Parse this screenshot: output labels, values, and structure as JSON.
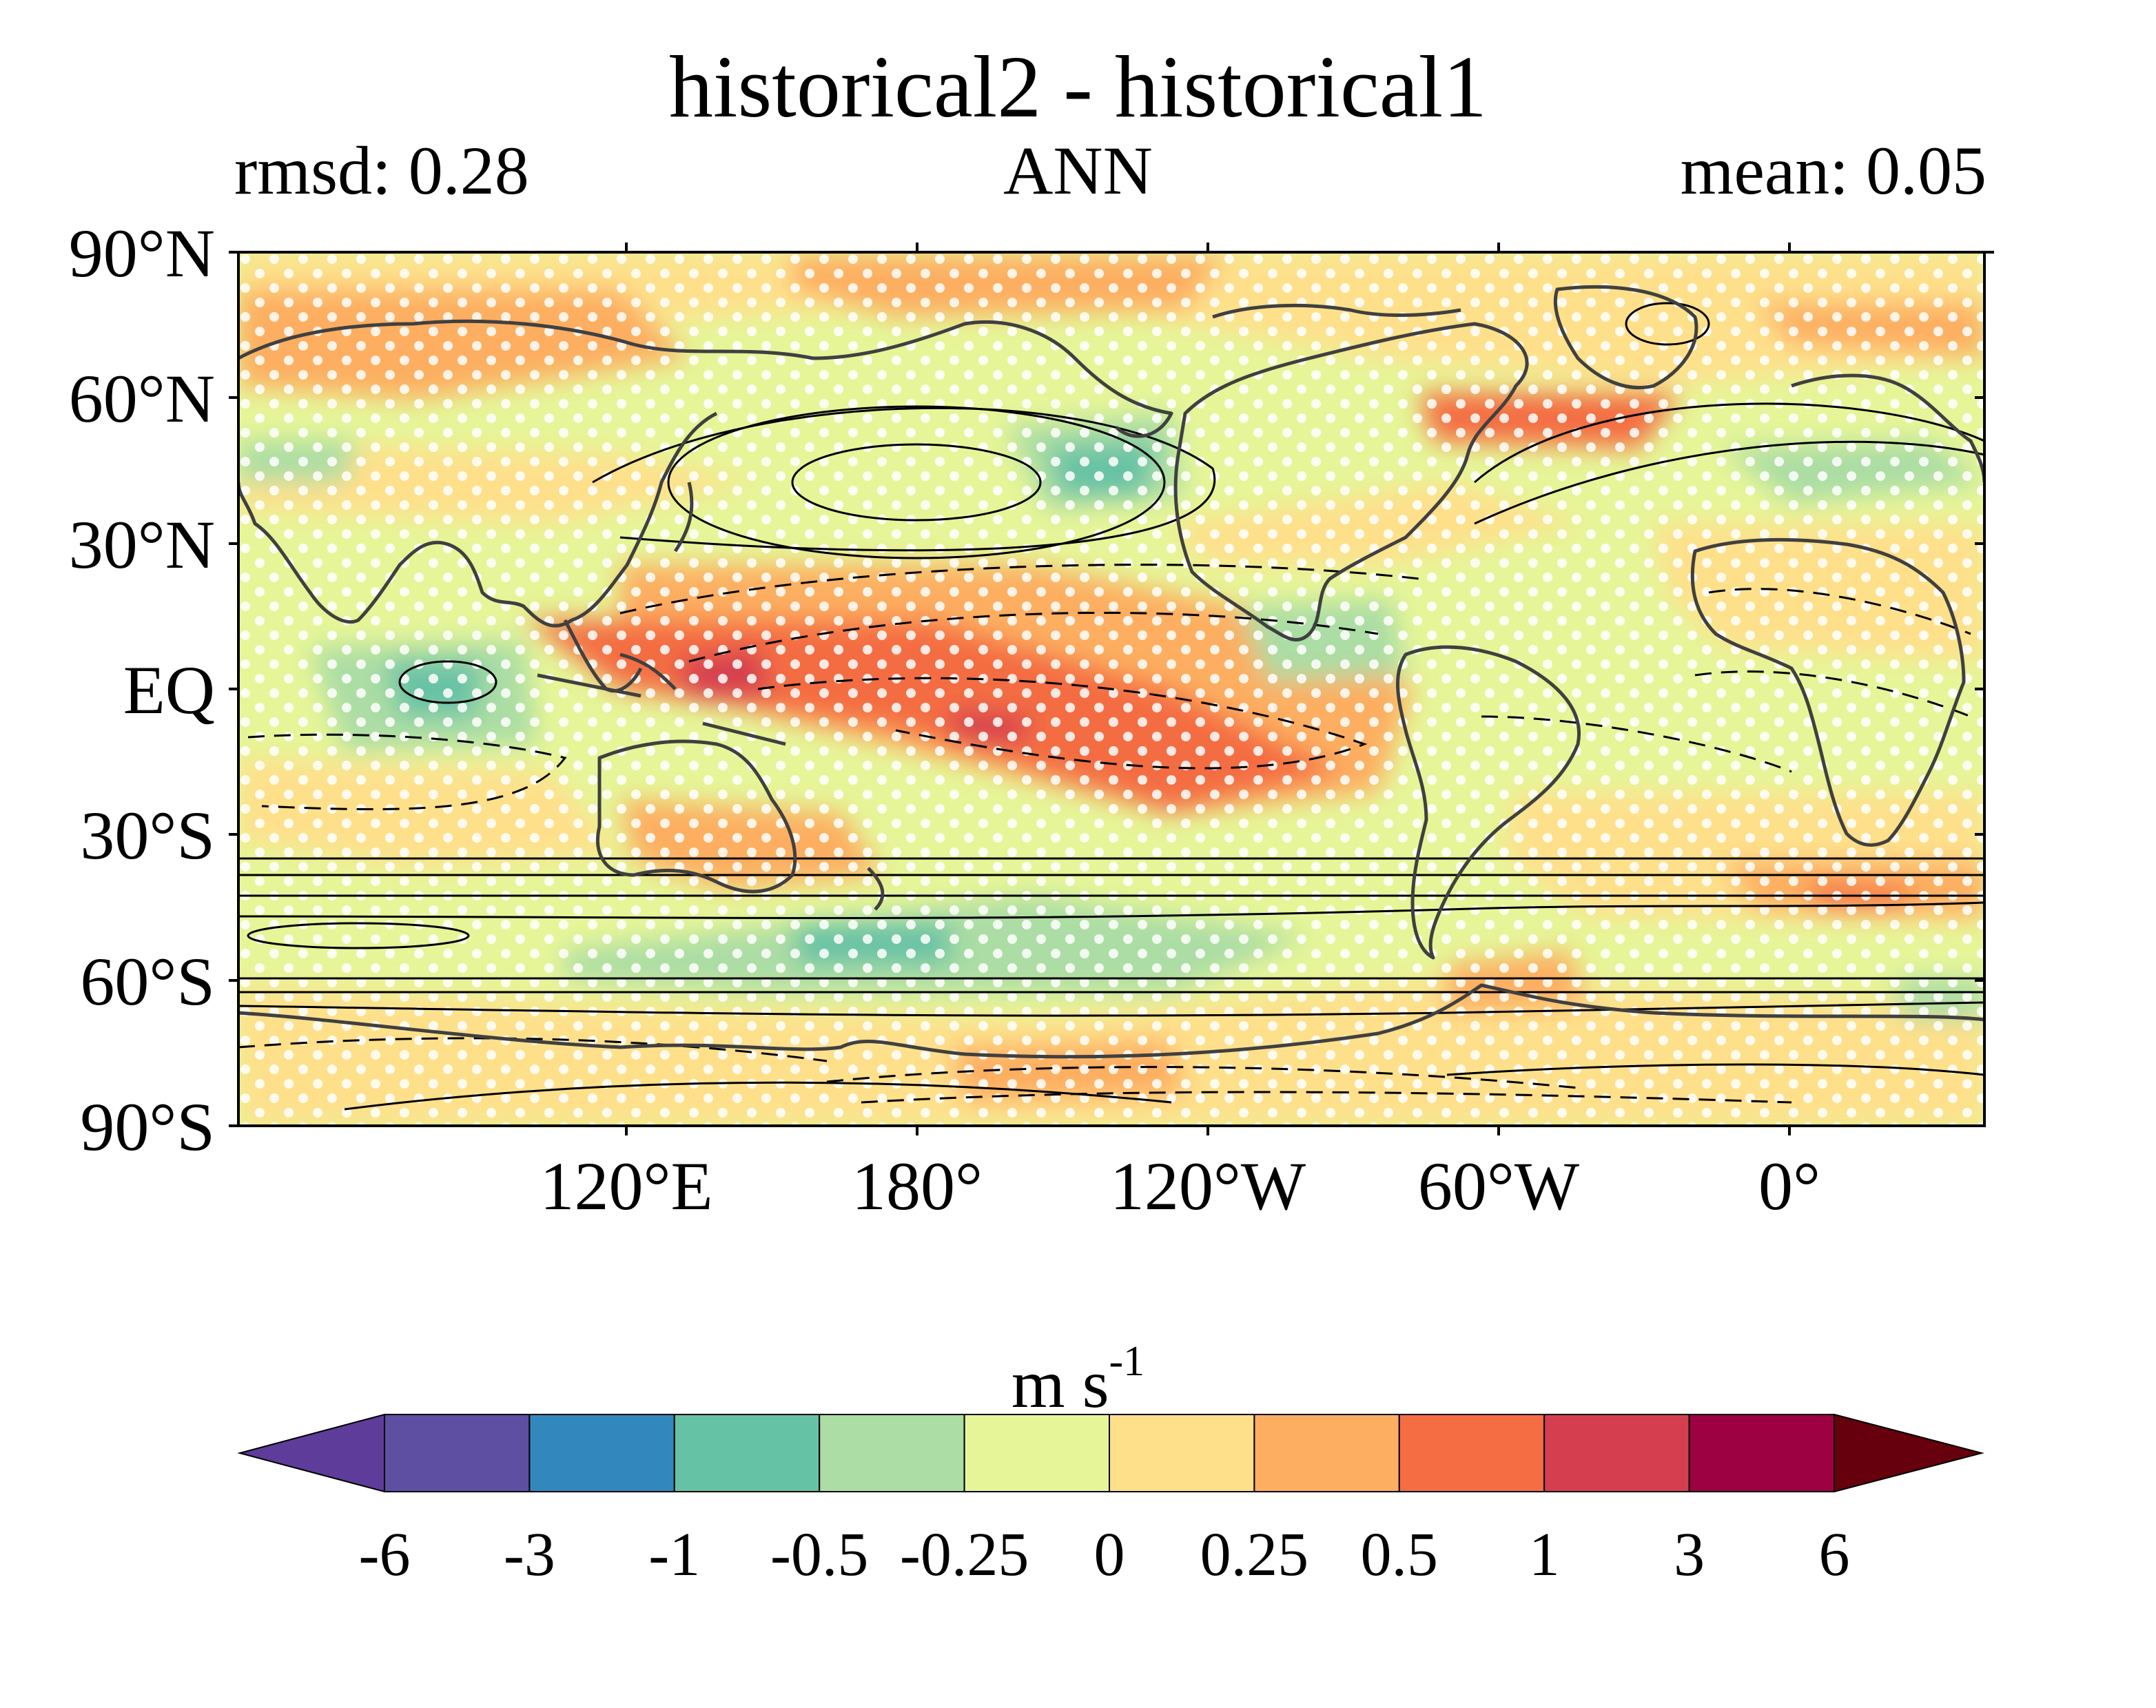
{
  "title": "historical2 - historical1",
  "subtitle_left": "rmsd: 0.28",
  "subtitle_center": "ANN",
  "subtitle_right": "mean: 0.05",
  "lat_labels": [
    "90°N",
    "60°N",
    "30°N",
    "EQ",
    "30°S",
    "60°S",
    "90°S"
  ],
  "lon_labels": [
    "120°E",
    "180°",
    "120°W",
    "60°W",
    "0°"
  ],
  "colorbar": {
    "units_base": "m s",
    "units_exp": "-1",
    "tick_labels": [
      "-6",
      "-3",
      "-1",
      "-0.5",
      "-0.25",
      "0",
      "0.25",
      "0.5",
      "1",
      "3",
      "6"
    ],
    "colors": [
      "#5e3c99",
      "#5e4fa2",
      "#3288bd",
      "#66c2a5",
      "#abdda4",
      "#e6f598",
      "#fee08b",
      "#fdae61",
      "#f46d43",
      "#d53e4f",
      "#9e0142",
      "#67000d"
    ]
  },
  "colors": {
    "land_outline": "#404040",
    "stipple": "#ffffff",
    "contour": "#000000"
  }
}
